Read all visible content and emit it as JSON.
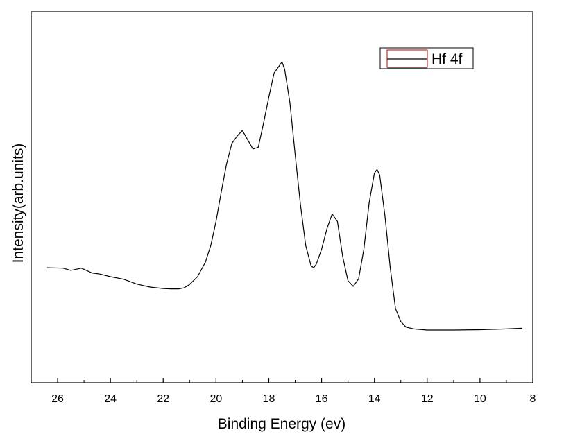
{
  "chart_data": {
    "type": "line",
    "title": "",
    "xlabel": "Binding Energy (ev)",
    "ylabel": "Intensity(arb.units)",
    "xlim": [
      27,
      8
    ],
    "ylim": [
      0,
      100
    ],
    "x_ticks": [
      26,
      24,
      22,
      20,
      18,
      16,
      14,
      12,
      10,
      8
    ],
    "y_ticks_shown": false,
    "grid": false,
    "legend_position": "top-right",
    "series": [
      {
        "name": "Hf 4f",
        "color": "#000000",
        "x": [
          26.4,
          25.8,
          25.5,
          25.1,
          24.7,
          24.4,
          24.0,
          23.5,
          23.0,
          22.5,
          22.0,
          21.7,
          21.4,
          21.2,
          21.0,
          20.7,
          20.4,
          20.2,
          20.0,
          19.8,
          19.6,
          19.4,
          19.2,
          19.0,
          18.8,
          18.6,
          18.4,
          18.2,
          18.0,
          17.8,
          17.6,
          17.5,
          17.4,
          17.2,
          17.0,
          16.8,
          16.6,
          16.4,
          16.3,
          16.2,
          16.0,
          15.8,
          15.6,
          15.4,
          15.2,
          15.0,
          14.8,
          14.6,
          14.4,
          14.2,
          14.0,
          13.9,
          13.8,
          13.6,
          13.4,
          13.2,
          13.0,
          12.8,
          12.5,
          12.0,
          11.0,
          10.0,
          9.0,
          8.4
        ],
        "y": [
          31.0,
          30.9,
          30.3,
          30.9,
          29.6,
          29.3,
          28.6,
          27.9,
          26.6,
          25.8,
          25.4,
          25.3,
          25.3,
          25.6,
          26.5,
          28.6,
          32.5,
          37.0,
          43.5,
          51.5,
          59.0,
          64.5,
          66.5,
          68.0,
          65.5,
          63.0,
          63.5,
          70.0,
          77.0,
          83.5,
          85.5,
          86.5,
          84.5,
          75.5,
          61.5,
          48.0,
          37.0,
          31.5,
          31.0,
          32.0,
          36.0,
          41.5,
          45.5,
          43.5,
          34.0,
          27.5,
          26.0,
          28.0,
          36.0,
          48.5,
          56.5,
          57.5,
          56.0,
          45.0,
          31.0,
          20.0,
          16.5,
          15.0,
          14.5,
          14.2,
          14.2,
          14.3,
          14.5,
          14.7
        ]
      }
    ]
  }
}
